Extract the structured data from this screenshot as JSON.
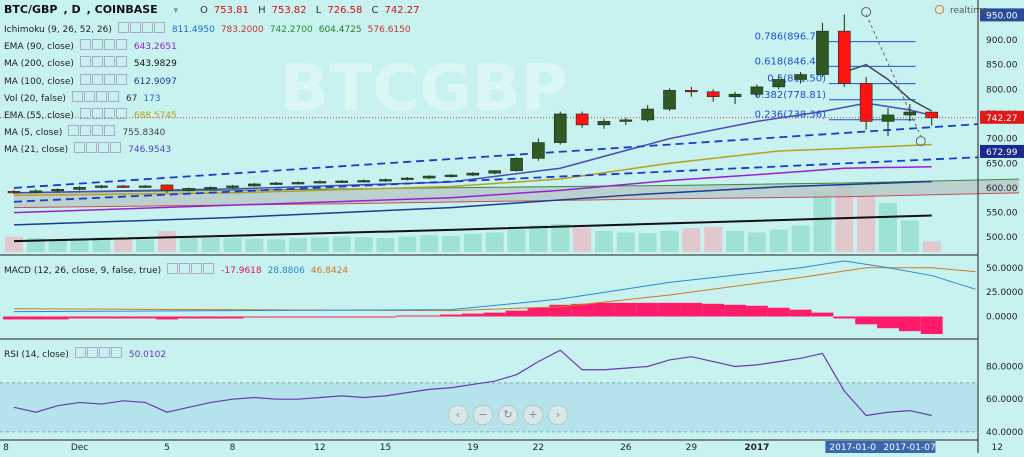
{
  "header": {
    "symbol": "BTC/GBP",
    "interval": "D",
    "exchange": "COINBASE",
    "o_label": "O",
    "o": "753.81",
    "h_label": "H",
    "h": "753.82",
    "l_label": "L",
    "l": "726.58",
    "c_label": "C",
    "c": "742.27",
    "realtime": "realtime"
  },
  "indicators": [
    {
      "label": "Ichimoku (9, 26, 52, 26)",
      "values": [
        "811.4950",
        "783.2000",
        "742.2700",
        "604.4725",
        "576.6150"
      ],
      "colors": [
        "#1e6ccc",
        "#c83232",
        "#2e8b2e",
        "#2a7a2a",
        "#c83232"
      ]
    },
    {
      "label": "EMA (90, close)",
      "values": [
        "643.2651"
      ],
      "colors": [
        "#9a1fd0"
      ]
    },
    {
      "label": "MA (200, close)",
      "values": [
        "543.9829"
      ],
      "colors": [
        "#111111"
      ]
    },
    {
      "label": "MA (100, close)",
      "values": [
        "612.9097"
      ],
      "colors": [
        "#1a3d8f"
      ]
    },
    {
      "label": "Vol (20, false)",
      "values": [
        "67",
        "173"
      ],
      "colors": [
        "#333333",
        "#1e6ccc"
      ]
    },
    {
      "label": "EMA (55, close)",
      "values": [
        "688.5745"
      ],
      "colors": [
        "#b8a020"
      ]
    },
    {
      "label": "MA (5, close)",
      "values": [
        "755.8340"
      ],
      "colors": [
        "#444444"
      ]
    },
    {
      "label": "MA (21, close)",
      "values": [
        "746.9543"
      ],
      "colors": [
        "#4a4ab8"
      ]
    }
  ],
  "macd_legend": {
    "label": "MACD (12, 26, close, 9, false, true)",
    "values": [
      "-17.9618",
      "28.8806",
      "46.8424"
    ],
    "colors": [
      "#e0105a",
      "#2a8ad0",
      "#d07a20"
    ]
  },
  "rsi_legend": {
    "label": "RSI (14, close)",
    "values": [
      "50.0102"
    ],
    "colors": [
      "#6a3ab0"
    ]
  },
  "price_axis": {
    "ticks": [
      "950.00",
      "900.00",
      "850.00",
      "800.00",
      "750.00",
      "700.00",
      "650.00",
      "600.00",
      "550.00",
      "500.00"
    ],
    "current": "742.27",
    "ema_tag": "672.99"
  },
  "macd_axis": {
    "ticks": [
      "50.0000",
      "25.0000",
      "0.0000"
    ]
  },
  "rsi_axis": {
    "ticks": [
      "80.0000",
      "60.0000",
      "40.0000"
    ]
  },
  "time_axis": {
    "ticks": [
      "8",
      "Dec",
      "5",
      "8",
      "12",
      "15",
      "19",
      "22",
      "26",
      "29",
      "2017",
      "5",
      "9",
      "12"
    ],
    "cursor_tags": [
      "2017-01-0",
      "2017-01-07"
    ]
  },
  "fib": [
    {
      "label": "0.786(896.72)",
      "value": 896.72
    },
    {
      "label": "0.618(846.48)",
      "value": 846.48
    },
    {
      "label": "0.5(811.50)",
      "value": 811.5
    },
    {
      "label": "0.382(778.81)",
      "value": 778.81
    },
    {
      "label": "0.236(738.36)",
      "value": 738.36
    }
  ],
  "watermark": "BTCGBP",
  "colors": {
    "up": "#2f5a24",
    "down": "#ff1414",
    "bg": "#c8f2ef"
  },
  "chart_data": {
    "type": "candlestick",
    "price_range": [
      470,
      965
    ],
    "x_tick_values": [
      {
        "label": "8",
        "date": "2016-11-28"
      },
      {
        "label": "Dec",
        "date": "2016-12-01"
      },
      {
        "label": "5",
        "date": "2016-12-05"
      },
      {
        "label": "8",
        "date": "2016-12-08"
      },
      {
        "label": "12",
        "date": "2016-12-12"
      },
      {
        "label": "15",
        "date": "2016-12-15"
      },
      {
        "label": "19",
        "date": "2016-12-19"
      },
      {
        "label": "22",
        "date": "2016-12-22"
      },
      {
        "label": "26",
        "date": "2016-12-26"
      },
      {
        "label": "29",
        "date": "2016-12-29"
      },
      {
        "label": "2017",
        "date": "2017-01-01"
      },
      {
        "label": "5",
        "date": "2017-01-05"
      },
      {
        "label": "9",
        "date": "2017-01-09"
      },
      {
        "label": "12",
        "date": "2017-01-12"
      }
    ],
    "candles": [
      {
        "date": "2016-11-28",
        "o": 593,
        "h": 596,
        "l": 588,
        "c": 592
      },
      {
        "date": "2016-11-29",
        "o": 592,
        "h": 597,
        "l": 589,
        "c": 594
      },
      {
        "date": "2016-11-30",
        "o": 594,
        "h": 599,
        "l": 591,
        "c": 597
      },
      {
        "date": "2016-12-01",
        "o": 597,
        "h": 603,
        "l": 595,
        "c": 601
      },
      {
        "date": "2016-12-02",
        "o": 601,
        "h": 606,
        "l": 599,
        "c": 604
      },
      {
        "date": "2016-12-03",
        "o": 604,
        "h": 606,
        "l": 600,
        "c": 602
      },
      {
        "date": "2016-12-04",
        "o": 602,
        "h": 606,
        "l": 600,
        "c": 604
      },
      {
        "date": "2016-12-05",
        "o": 606,
        "h": 607,
        "l": 590,
        "c": 595
      },
      {
        "date": "2016-12-06",
        "o": 595,
        "h": 601,
        "l": 593,
        "c": 599
      },
      {
        "date": "2016-12-07",
        "o": 599,
        "h": 603,
        "l": 597,
        "c": 601
      },
      {
        "date": "2016-12-08",
        "o": 601,
        "h": 606,
        "l": 599,
        "c": 604
      },
      {
        "date": "2016-12-09",
        "o": 604,
        "h": 610,
        "l": 602,
        "c": 608
      },
      {
        "date": "2016-12-10",
        "o": 608,
        "h": 612,
        "l": 606,
        "c": 610
      },
      {
        "date": "2016-12-11",
        "o": 610,
        "h": 613,
        "l": 607,
        "c": 611
      },
      {
        "date": "2016-12-12",
        "o": 611,
        "h": 615,
        "l": 609,
        "c": 613
      },
      {
        "date": "2016-12-13",
        "o": 613,
        "h": 616,
        "l": 610,
        "c": 614
      },
      {
        "date": "2016-12-14",
        "o": 614,
        "h": 617,
        "l": 611,
        "c": 615
      },
      {
        "date": "2016-12-15",
        "o": 615,
        "h": 619,
        "l": 612,
        "c": 617
      },
      {
        "date": "2016-12-16",
        "o": 617,
        "h": 622,
        "l": 615,
        "c": 620
      },
      {
        "date": "2016-12-17",
        "o": 620,
        "h": 626,
        "l": 618,
        "c": 624
      },
      {
        "date": "2016-12-18",
        "o": 624,
        "h": 628,
        "l": 621,
        "c": 626
      },
      {
        "date": "2016-12-19",
        "o": 626,
        "h": 632,
        "l": 624,
        "c": 630
      },
      {
        "date": "2016-12-20",
        "o": 630,
        "h": 636,
        "l": 628,
        "c": 635
      },
      {
        "date": "2016-12-21",
        "o": 635,
        "h": 662,
        "l": 633,
        "c": 660
      },
      {
        "date": "2016-12-22",
        "o": 660,
        "h": 700,
        "l": 655,
        "c": 692
      },
      {
        "date": "2016-12-23",
        "o": 692,
        "h": 755,
        "l": 688,
        "c": 750
      },
      {
        "date": "2016-12-24",
        "o": 750,
        "h": 755,
        "l": 722,
        "c": 728
      },
      {
        "date": "2016-12-25",
        "o": 728,
        "h": 740,
        "l": 720,
        "c": 735
      },
      {
        "date": "2016-12-26",
        "o": 735,
        "h": 742,
        "l": 728,
        "c": 738
      },
      {
        "date": "2016-12-27",
        "o": 738,
        "h": 768,
        "l": 734,
        "c": 760
      },
      {
        "date": "2016-12-28",
        "o": 760,
        "h": 802,
        "l": 756,
        "c": 798
      },
      {
        "date": "2016-12-29",
        "o": 798,
        "h": 805,
        "l": 785,
        "c": 795
      },
      {
        "date": "2016-12-30",
        "o": 795,
        "h": 800,
        "l": 775,
        "c": 785
      },
      {
        "date": "2016-12-31",
        "o": 785,
        "h": 795,
        "l": 770,
        "c": 790
      },
      {
        "date": "2017-01-01",
        "o": 790,
        "h": 810,
        "l": 785,
        "c": 805
      },
      {
        "date": "2017-01-02",
        "o": 805,
        "h": 826,
        "l": 800,
        "c": 820
      },
      {
        "date": "2017-01-03",
        "o": 820,
        "h": 835,
        "l": 812,
        "c": 830
      },
      {
        "date": "2017-01-04",
        "o": 830,
        "h": 935,
        "l": 825,
        "c": 918
      },
      {
        "date": "2017-01-05",
        "o": 918,
        "h": 952,
        "l": 805,
        "c": 812
      },
      {
        "date": "2017-01-06",
        "o": 812,
        "h": 825,
        "l": 718,
        "c": 735
      },
      {
        "date": "2017-01-07",
        "o": 735,
        "h": 762,
        "l": 705,
        "c": 748
      },
      {
        "date": "2017-01-08",
        "o": 748,
        "h": 770,
        "l": 735,
        "c": 754
      },
      {
        "date": "2017-01-09",
        "o": 753.81,
        "h": 753.82,
        "l": 726.58,
        "c": 742.27
      }
    ],
    "volume": [
      22,
      20,
      18,
      19,
      21,
      20,
      18,
      30,
      22,
      20,
      20,
      19,
      18,
      20,
      21,
      22,
      21,
      20,
      22,
      24,
      23,
      26,
      28,
      32,
      38,
      40,
      35,
      30,
      28,
      27,
      30,
      34,
      36,
      30,
      28,
      32,
      38,
      85,
      95,
      80,
      70,
      45,
      15
    ],
    "ma_lines": [
      {
        "name": "MA (21, close)",
        "color": "#4a4ab8",
        "points": [
          [
            0,
            590
          ],
          [
            10,
            598
          ],
          [
            20,
            612
          ],
          [
            25,
            640
          ],
          [
            30,
            700
          ],
          [
            34,
            735
          ],
          [
            37,
            755
          ],
          [
            39,
            772
          ],
          [
            41,
            758
          ],
          [
            42,
            747
          ]
        ]
      },
      {
        "name": "EMA (55, close)",
        "color": "#b8a020",
        "points": [
          [
            0,
            585
          ],
          [
            10,
            590
          ],
          [
            20,
            603
          ],
          [
            25,
            618
          ],
          [
            30,
            650
          ],
          [
            35,
            675
          ],
          [
            38,
            680
          ],
          [
            42,
            688
          ]
        ]
      },
      {
        "name": "EMA (90, close)",
        "color": "#9a1fd0",
        "points": [
          [
            0,
            550
          ],
          [
            10,
            565
          ],
          [
            20,
            580
          ],
          [
            25,
            595
          ],
          [
            30,
            615
          ],
          [
            35,
            630
          ],
          [
            38,
            640
          ],
          [
            42,
            643
          ]
        ]
      },
      {
        "name": "MA (100, close)",
        "color": "#1a3d8f",
        "points": [
          [
            0,
            525
          ],
          [
            10,
            540
          ],
          [
            20,
            560
          ],
          [
            28,
            585
          ],
          [
            35,
            602
          ],
          [
            42,
            613
          ]
        ]
      },
      {
        "name": "MA (200, close)",
        "color": "#111111",
        "points": [
          [
            0,
            492
          ],
          [
            10,
            503
          ],
          [
            20,
            515
          ],
          [
            30,
            528
          ],
          [
            42,
            544
          ]
        ]
      },
      {
        "name": "MA (5, close)",
        "color": "#444444",
        "points": [
          [
            38,
            835
          ],
          [
            39,
            850
          ],
          [
            40,
            820
          ],
          [
            41,
            780
          ],
          [
            42,
            756
          ]
        ]
      }
    ],
    "trendlines": [
      {
        "p1": [
          0,
          600
        ],
        "p2": [
          45,
          732
        ]
      },
      {
        "p1": [
          0,
          572
        ],
        "p2": [
          45,
          664
        ]
      }
    ],
    "ichimoku_cloud": {
      "top": [
        [
          0,
          590
        ],
        [
          15,
          598
        ],
        [
          30,
          605
        ],
        [
          38,
          610
        ],
        [
          46,
          618
        ]
      ],
      "bottom": [
        [
          0,
          560
        ],
        [
          15,
          568
        ],
        [
          30,
          578
        ],
        [
          38,
          582
        ],
        [
          46,
          590
        ]
      ]
    },
    "macd": {
      "range": [
        -20,
        60
      ],
      "hist": [
        -3,
        -3,
        -3,
        -2,
        -2,
        -2,
        -2,
        -3,
        -2,
        -2,
        -2,
        -1,
        -1,
        -1,
        -1,
        0,
        0,
        0,
        1,
        1,
        2,
        3,
        4,
        6,
        9,
        12,
        13,
        14,
        14,
        14,
        14,
        14,
        13,
        12,
        11,
        9,
        7,
        4,
        -2,
        -8,
        -12,
        -15,
        -18
      ],
      "macd_line": [
        [
          0,
          5
        ],
        [
          20,
          7
        ],
        [
          25,
          18
        ],
        [
          30,
          35
        ],
        [
          36,
          50
        ],
        [
          38,
          57
        ],
        [
          40,
          50
        ],
        [
          42,
          42
        ],
        [
          44,
          28
        ]
      ],
      "signal_line": [
        [
          0,
          8
        ],
        [
          20,
          6
        ],
        [
          25,
          10
        ],
        [
          30,
          22
        ],
        [
          36,
          40
        ],
        [
          39,
          50
        ],
        [
          42,
          50
        ],
        [
          44,
          46
        ]
      ]
    },
    "rsi": {
      "range": [
        35,
        95
      ],
      "values": [
        55,
        52,
        56,
        58,
        57,
        59,
        58,
        52,
        55,
        58,
        60,
        61,
        60,
        60,
        61,
        62,
        61,
        62,
        64,
        66,
        67,
        69,
        71,
        75,
        83,
        90,
        78,
        78,
        79,
        80,
        84,
        86,
        83,
        80,
        81,
        83,
        85,
        88,
        65,
        50,
        52,
        53,
        50
      ],
      "band": [
        40,
        70
      ]
    }
  }
}
